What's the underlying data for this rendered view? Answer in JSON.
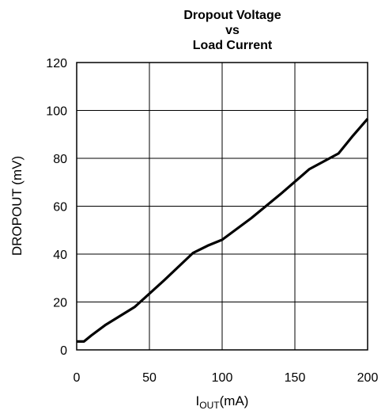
{
  "chart_data": {
    "type": "line",
    "title_lines": [
      "Dropout Voltage",
      "vs",
      "Load Current"
    ],
    "xlabel": {
      "main": "I",
      "subscript": "OUT",
      "unit": "(mA)"
    },
    "ylabel": "DROPOUT (mV)",
    "xlim": [
      0,
      200
    ],
    "ylim": [
      0,
      120
    ],
    "x_ticks": [
      0,
      50,
      100,
      150,
      200
    ],
    "y_ticks": [
      0,
      20,
      40,
      60,
      80,
      100,
      120
    ],
    "grid": true,
    "series": [
      {
        "color": "#000000",
        "x": [
          0,
          5,
          10,
          20,
          40,
          60,
          80,
          90,
          100,
          120,
          140,
          160,
          180,
          190,
          200
        ],
        "y": [
          3.5,
          3.5,
          6,
          10.5,
          18,
          29,
          40.5,
          43.5,
          46,
          55,
          65,
          75.5,
          82,
          89.5,
          96.5
        ]
      }
    ]
  }
}
